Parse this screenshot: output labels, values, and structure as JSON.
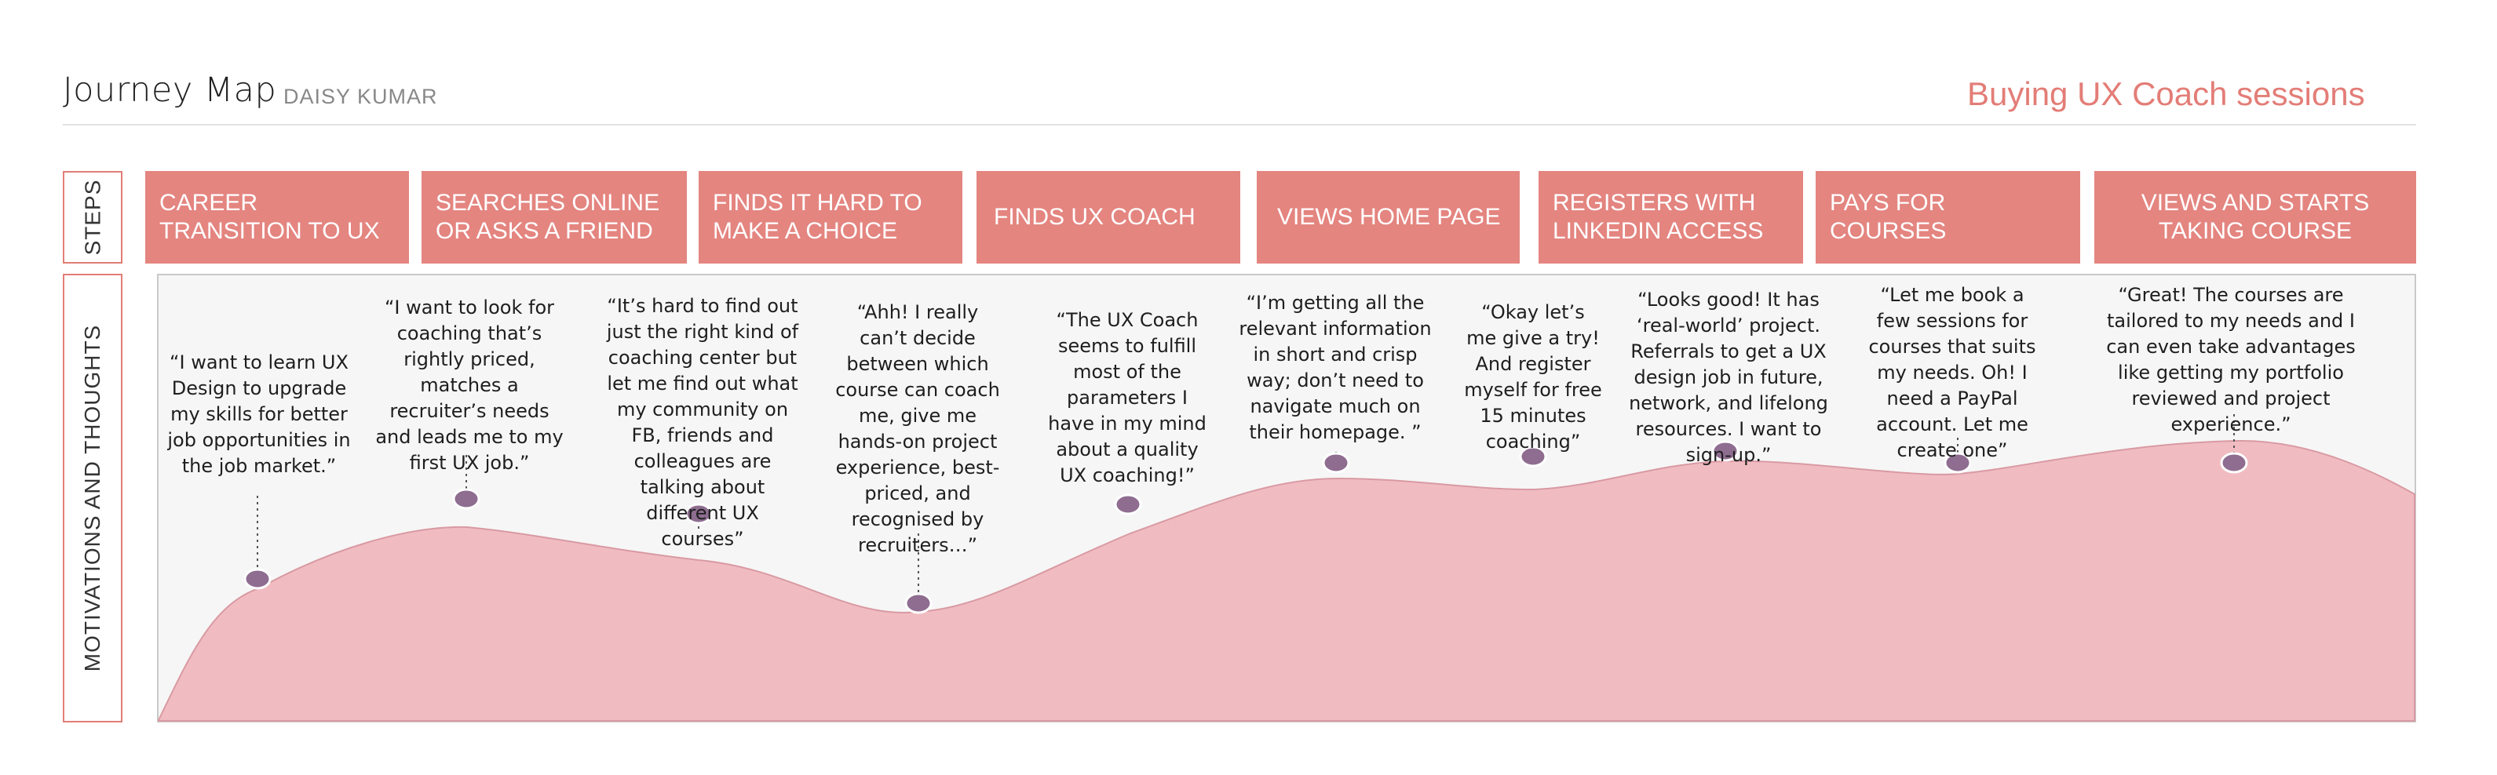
{
  "header": {
    "title": "Journey Map",
    "author": "DAISY KUMAR",
    "subject": "Buying UX Coach sessions"
  },
  "rows": {
    "steps_label": "STEPS",
    "motivations_label": "MOTIVATIONS AND THOUGHTS"
  },
  "steps": [
    "CAREER TRANSITION TO UX",
    "SEARCHES ONLINE OR ASKS A FRIEND",
    "FINDS IT HARD TO MAKE A CHOICE",
    "FINDS UX COACH",
    "VIEWS HOME PAGE",
    "REGISTERS WITH LINKEDIN ACCESS",
    "PAYS FOR COURSES",
    "VIEWS AND STARTS TAKING COURSE"
  ],
  "thoughts": [
    "“I want to learn UX Design to upgrade my skills for better job opportunities in the job market.”",
    "“I want to look for coaching that’s rightly priced, matches a recruiter’s needs and leads me to my first UX job.”",
    "“It’s hard to find out just the right kind of coaching center but let me find out what my community on FB, friends and colleagues are talking about different UX courses”",
    "“Ahh! I really can’t decide between which course can coach me, give me hands-on project experience, best-priced, and recognised by recruiters…”",
    "“The UX Coach seems to fulfill most of the parameters I have in my mind about a quality UX coaching!”",
    "“I’m getting all the relevant information in short and crisp way; don’t need to navigate much on their homepage. ”",
    "“Okay let’s me give a try! And register myself for free 15 minutes coaching”",
    "“Looks good! It has ‘real-world’ project. Referrals to get a UX design job in future, network, and lifelong resources. I want to sign-up.”",
    "“Let me book a few sessions for courses that suits my needs. Oh! I need a PayPal account. Let me create one”",
    "“Great! The courses are tailored to my needs and I can even take advantages like getting my portfolio reviewed and project experience.”"
  ],
  "chart_data": {
    "type": "area",
    "description_series": "emotional level per thought, 0 = low, 1 = high",
    "levels": [
      0.51,
      0.78,
      0.73,
      0.43,
      0.76,
      0.9,
      0.92,
      0.94,
      0.9,
      0.9
    ],
    "colors": {
      "area": "#F0BCC2",
      "area_stroke": "#D99AA3",
      "marker": "#8E6D90",
      "step": "#E48580",
      "accent": "#E37D77"
    }
  }
}
